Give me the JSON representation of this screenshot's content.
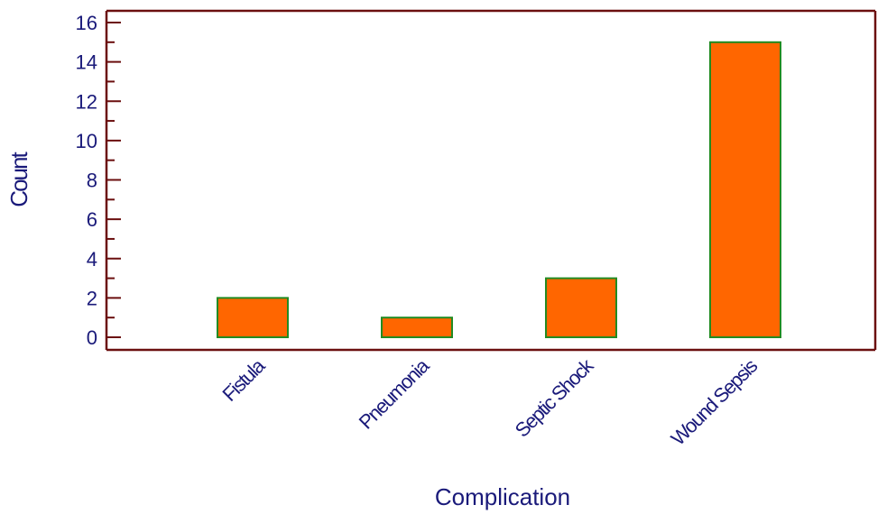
{
  "chart_data": {
    "type": "bar",
    "title": "",
    "xlabel": "Complication",
    "ylabel": "Count",
    "categories": [
      "Fistula",
      "Pneumonia",
      "Septic Shock",
      "Wound Sepsis"
    ],
    "values": [
      2,
      1,
      3,
      15
    ],
    "ylim": [
      0,
      16
    ],
    "yticks": [
      0,
      2,
      4,
      6,
      8,
      10,
      12,
      14,
      16
    ],
    "grid": false,
    "legend": "none",
    "colors": {
      "bar_fill": "#ff6600",
      "bar_stroke": "#228b22",
      "axis": "#6b0f0f",
      "text": "#1a1a7a"
    }
  }
}
